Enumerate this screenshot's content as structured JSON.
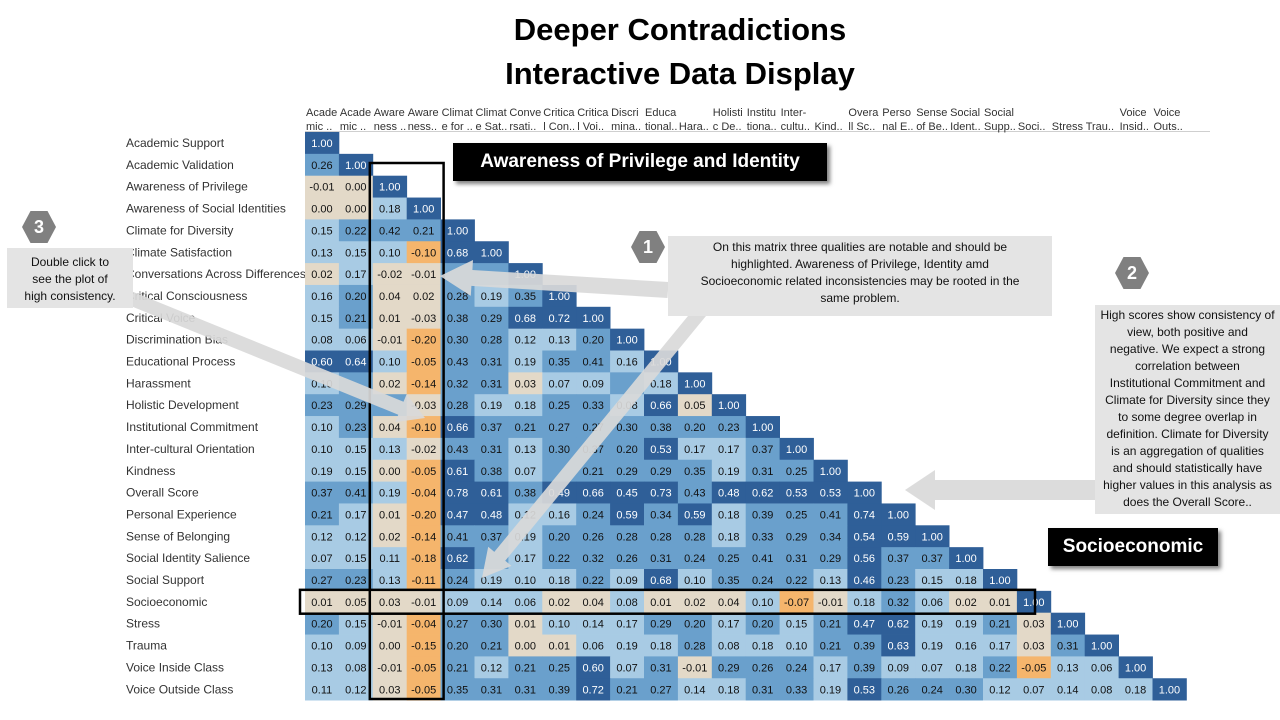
{
  "title": {
    "line1": "Deeper Contradictions",
    "line2": "Interactive Data Display"
  },
  "chart_data": {
    "type": "heatmap",
    "column_headers": [
      [
        "Acade",
        "mic .."
      ],
      [
        "Acade",
        "mic .."
      ],
      [
        "Aware",
        "ness .."
      ],
      [
        "Aware",
        "ness.."
      ],
      [
        "Climat",
        "e for .."
      ],
      [
        "Climat",
        "e Sat.."
      ],
      [
        "Conve",
        "rsati.."
      ],
      [
        "Critica",
        "l Con.."
      ],
      [
        "Critica",
        "l Voi.."
      ],
      [
        "Discri",
        "mina.."
      ],
      [
        "Educa",
        "tional.."
      ],
      [
        "",
        "Hara.."
      ],
      [
        "Holisti",
        "c De.."
      ],
      [
        "Institu",
        "tiona.."
      ],
      [
        "Inter-",
        "cultu.."
      ],
      [
        "",
        "Kind.."
      ],
      [
        "Overa",
        "ll Sc.."
      ],
      [
        "Perso",
        "nal E.."
      ],
      [
        "Sense",
        "of Be.."
      ],
      [
        "Social",
        "Ident.."
      ],
      [
        "Social",
        "Supp.."
      ],
      [
        "",
        "Soci.."
      ],
      [
        "",
        "Stress"
      ],
      [
        "",
        "Trau.."
      ],
      [
        "Voice",
        "Insid.."
      ],
      [
        "Voice",
        "Outs.."
      ]
    ],
    "row_labels": [
      "Academic Support",
      "Academic Validation",
      "Awareness of Privilege",
      "Awareness of Social Identities",
      "Climate for Diversity",
      "Climate Satisfaction",
      "Conversations Across Differences",
      "Critical Consciousness",
      "Critical Voice",
      "Discrimination Bias",
      "Educational Process",
      "Harassment",
      "Holistic Development",
      "Institutional Commitment",
      "Inter-cultural Orientation",
      "Kindness",
      "Overall Score",
      "Personal Experience",
      "Sense of Belonging",
      "Social Identity Salience",
      "Social Support",
      "Socioeconomic",
      "Stress",
      "Trauma",
      "Voice Inside Class",
      "Voice Outside Class"
    ],
    "values": [
      [
        "1.00"
      ],
      [
        "0.26",
        "1.00"
      ],
      [
        "-0.01",
        "0.00",
        "1.00"
      ],
      [
        "0.00",
        "0.00",
        "0.18",
        "1.00"
      ],
      [
        "0.15",
        "0.22",
        "0.42",
        "0.21",
        "1.00"
      ],
      [
        "0.13",
        "0.15",
        "0.10",
        "-0.10",
        "0.68",
        "1.00"
      ],
      [
        "0.02",
        "0.17",
        "-0.02",
        "-0.01",
        "",
        "",
        "1.00"
      ],
      [
        "0.16",
        "0.20",
        "0.04",
        "0.02",
        "0.28",
        "0.19",
        "0.35",
        "1.00"
      ],
      [
        "0.15",
        "0.21",
        "0.01",
        "-0.03",
        "0.38",
        "0.29",
        "0.68",
        "0.72",
        "1.00"
      ],
      [
        "0.08",
        "0.06",
        "-0.01",
        "-0.20",
        "0.30",
        "0.28",
        "0.12",
        "0.13",
        "0.20",
        "1.00"
      ],
      [
        "0.60",
        "0.64",
        "0.10",
        "-0.05",
        "0.43",
        "0.31",
        "0.19",
        "0.35",
        "0.41",
        "0.16",
        "1.00"
      ],
      [
        "0.10",
        "",
        "0.02",
        "-0.14",
        "0.32",
        "0.31",
        "0.03",
        "0.07",
        "0.09",
        "",
        "0.18",
        "1.00"
      ],
      [
        "0.23",
        "0.29",
        "",
        "-0.03",
        "0.28",
        "0.19",
        "0.18",
        "0.25",
        "0.33",
        "0.08",
        "0.66",
        "0.05",
        "1.00"
      ],
      [
        "0.10",
        "0.23",
        "0.04",
        "-0.10",
        "0.66",
        "0.37",
        "0.21",
        "0.27",
        "0.27",
        "0.30",
        "0.38",
        "0.20",
        "0.23",
        "1.00"
      ],
      [
        "0.10",
        "0.15",
        "0.13",
        "-0.02",
        "0.43",
        "0.31",
        "0.13",
        "0.30",
        "0.37",
        "0.20",
        "0.53",
        "0.17",
        "0.17",
        "0.37",
        "1.00"
      ],
      [
        "0.19",
        "0.15",
        "0.00",
        "-0.05",
        "0.61",
        "0.38",
        "0.07",
        "",
        "0.21",
        "0.29",
        "0.29",
        "0.35",
        "0.19",
        "0.31",
        "0.25",
        "1.00"
      ],
      [
        "0.37",
        "0.41",
        "0.19",
        "-0.04",
        "0.78",
        "0.61",
        "0.38",
        "0.49",
        "0.66",
        "0.45",
        "0.73",
        "0.43",
        "0.48",
        "0.62",
        "0.53",
        "0.53",
        "1.00"
      ],
      [
        "0.21",
        "0.17",
        "0.01",
        "-0.20",
        "0.47",
        "0.48",
        "0.12",
        "0.16",
        "0.24",
        "0.59",
        "0.34",
        "0.59",
        "0.18",
        "0.39",
        "0.25",
        "0.41",
        "0.74",
        "1.00"
      ],
      [
        "0.12",
        "0.12",
        "0.02",
        "-0.14",
        "0.41",
        "0.37",
        "0.19",
        "0.20",
        "0.26",
        "0.28",
        "0.28",
        "0.28",
        "0.18",
        "0.33",
        "0.29",
        "0.34",
        "0.54",
        "0.59",
        "1.00"
      ],
      [
        "0.07",
        "0.15",
        "0.11",
        "-0.18",
        "0.62",
        "",
        "0.17",
        "0.22",
        "0.32",
        "0.26",
        "0.31",
        "0.24",
        "0.25",
        "0.41",
        "0.31",
        "0.29",
        "0.56",
        "0.37",
        "0.37",
        "1.00"
      ],
      [
        "0.27",
        "0.23",
        "0.13",
        "-0.11",
        "0.24",
        "0.19",
        "0.10",
        "0.18",
        "0.22",
        "0.09",
        "0.68",
        "0.10",
        "0.35",
        "0.24",
        "0.22",
        "0.13",
        "0.46",
        "0.23",
        "0.15",
        "0.18",
        "1.00"
      ],
      [
        "0.01",
        "0.05",
        "0.03",
        "-0.01",
        "0.09",
        "0.14",
        "0.06",
        "0.02",
        "0.04",
        "0.08",
        "0.01",
        "0.02",
        "0.04",
        "0.10",
        "-0.07",
        "-0.01",
        "0.18",
        "0.32",
        "0.06",
        "0.02",
        "0.01",
        "1.00"
      ],
      [
        "0.20",
        "0.15",
        "-0.01",
        "-0.04",
        "0.27",
        "0.30",
        "0.01",
        "0.10",
        "0.14",
        "0.17",
        "0.29",
        "0.20",
        "0.17",
        "0.20",
        "0.15",
        "0.21",
        "0.47",
        "0.62",
        "0.19",
        "0.19",
        "0.21",
        "0.03",
        "1.00"
      ],
      [
        "0.10",
        "0.09",
        "0.00",
        "-0.15",
        "0.20",
        "0.21",
        "0.00",
        "0.01",
        "0.06",
        "0.19",
        "0.18",
        "0.28",
        "0.08",
        "0.18",
        "0.10",
        "0.21",
        "0.39",
        "0.63",
        "0.19",
        "0.16",
        "0.17",
        "0.03",
        "0.31",
        "1.00"
      ],
      [
        "0.13",
        "0.08",
        "-0.01",
        "-0.05",
        "0.21",
        "0.12",
        "0.21",
        "0.25",
        "0.60",
        "0.07",
        "0.31",
        "-0.01",
        "0.29",
        "0.26",
        "0.24",
        "0.17",
        "0.39",
        "0.09",
        "0.07",
        "0.18",
        "0.22",
        "-0.05",
        "0.13",
        "0.06",
        "1.00"
      ],
      [
        "0.11",
        "0.12",
        "0.03",
        "-0.05",
        "0.35",
        "0.31",
        "0.31",
        "0.39",
        "0.72",
        "0.21",
        "0.27",
        "0.14",
        "0.18",
        "0.31",
        "0.33",
        "0.19",
        "0.53",
        "0.26",
        "0.24",
        "0.30",
        "0.12",
        "0.07",
        "0.14",
        "0.08",
        "0.18",
        "1.00"
      ]
    ],
    "highlight_columns": [
      2,
      3
    ],
    "highlight_row": 21,
    "colors": {
      "strong_positive": "#2f5f98",
      "mid_positive": "#6aa0cc",
      "weak_positive": "#a8cbe4",
      "near_zero": "#e3d9c8",
      "negative": "#f5b56c",
      "text_dark": "#111111",
      "text_light": "#ffffff",
      "arrow": "#d9d9d9"
    }
  },
  "callouts": {
    "privilege": "Awareness of Privilege and Identity",
    "socioeconomic": "Socioeconomic"
  },
  "badges": {
    "one": "1",
    "two": "2",
    "three": "3"
  },
  "notes": {
    "note1": [
      "On this matrix three qualities are notable and should be",
      "highlighted.  Awareness of Privilege, Identity amd",
      "Socioeconomic  related inconsistencies  may be rooted in the",
      "same problem."
    ],
    "note2": [
      "High scores show consistency of",
      "view, both positive and",
      "negative.  We expect a strong",
      "correlation between",
      "Institutional Commitment and",
      "Climate for Diversity since they",
      "to some degree overlap in",
      "definition.  Climate for Diversity",
      "is an aggregation of qualities",
      "and should  statistically have",
      "higher values in this analysis as",
      "does the Overall Score.."
    ],
    "note3": [
      "Double click to",
      "see the plot of",
      "high consistency."
    ]
  }
}
